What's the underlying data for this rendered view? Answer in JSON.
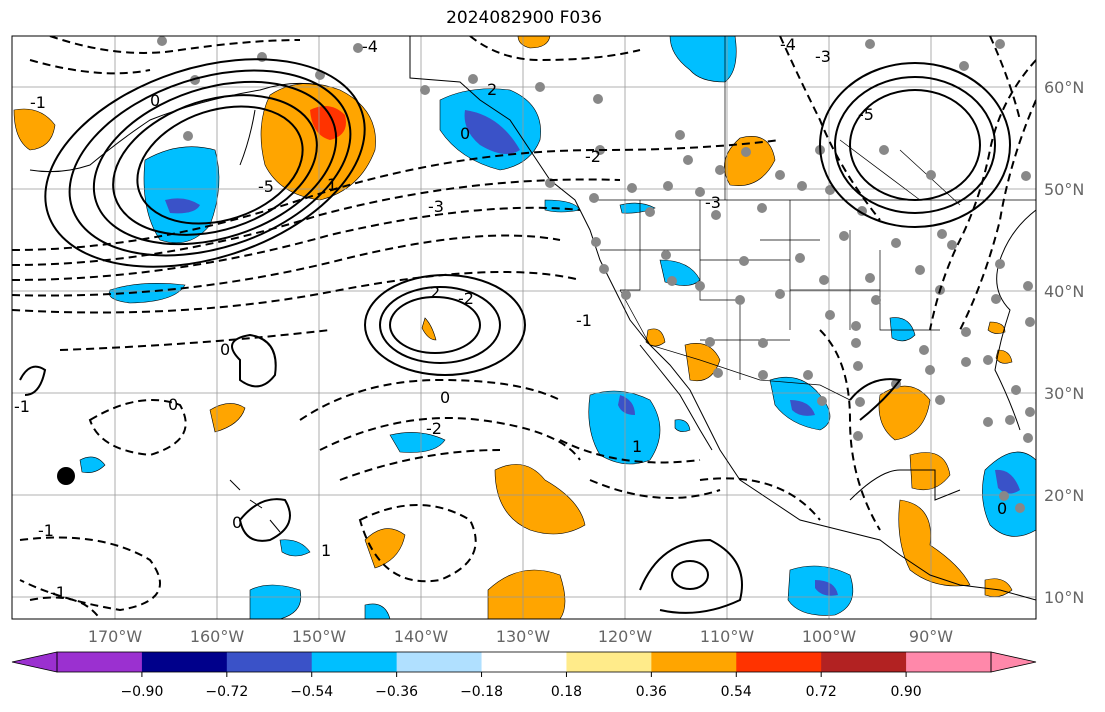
{
  "title": "2024082900 F036",
  "map": {
    "lon_labels": [
      "170°W",
      "160°W",
      "150°W",
      "140°W",
      "130°W",
      "120°W",
      "110°W",
      "100°W",
      "90°W"
    ],
    "lat_labels": [
      "60°N",
      "50°N",
      "40°N",
      "30°N",
      "20°N",
      "10°N"
    ],
    "contour_labels": [
      "-4",
      "-5",
      "0",
      "1",
      "2",
      "-2",
      "-3",
      "0",
      "-1",
      "2",
      "-2",
      "-1",
      "0",
      "-1",
      "-2",
      "0",
      "-1",
      "1",
      "0",
      "1",
      "-4",
      "-3",
      "-5",
      "-3",
      "0",
      "0",
      "-1"
    ],
    "gridlines": true,
    "features": [
      "coastlines",
      "country borders",
      "US state borders"
    ],
    "marker": "black-dot"
  },
  "colorbar": {
    "ticks": [
      "−0.90",
      "−0.72",
      "−0.54",
      "−0.36",
      "−0.18",
      "0.18",
      "0.36",
      "0.54",
      "0.72",
      "0.90"
    ],
    "colors": [
      "#9b30d0",
      "#00008b",
      "#3a52c8",
      "#00bfff",
      "#b0e0ff",
      "#ffffff",
      "#ffeb8a",
      "#ffa500",
      "#ff3300",
      "#b22222",
      "#ff88aa"
    ],
    "extend": "both"
  }
}
